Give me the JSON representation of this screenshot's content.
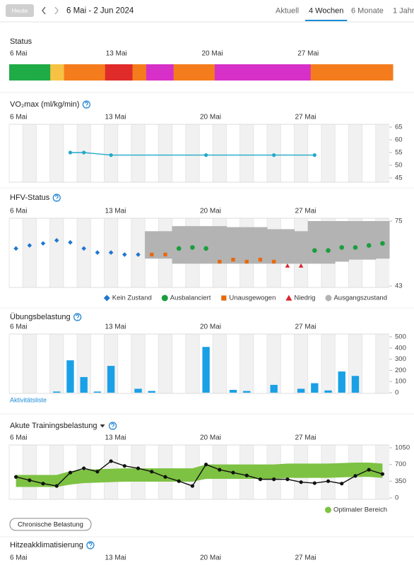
{
  "header": {
    "today": "Heute",
    "range": "6 Mai - 2 Jun 2024",
    "tabs": [
      {
        "label": "Aktuell"
      },
      {
        "label": "4 Wochen",
        "active": true
      },
      {
        "label": "6 Monate"
      },
      {
        "label": "1 Jahr"
      }
    ]
  },
  "chart_data": [
    {
      "type": "status",
      "title": "Status",
      "xlim": [
        -0.5,
        27.5
      ],
      "xticks": [
        {
          "value": 0,
          "label": "6 Mai"
        },
        {
          "value": 7,
          "label": "13 Mai"
        },
        {
          "value": 14,
          "label": "20 Mai"
        },
        {
          "value": 21,
          "label": "27 Mai"
        }
      ],
      "days": [
        "#1fab46",
        "#1fab46",
        "#1fab46",
        "#f7c244",
        "#f47c1c",
        "#f47c1c",
        "#f47c1c",
        "#e02b2b",
        "#e02b2b",
        "#f47c1c",
        "#d630c8",
        "#d630c8",
        "#f47c1c",
        "#f47c1c",
        "#f47c1c",
        "#d630c8",
        "#d630c8",
        "#d630c8",
        "#d630c8",
        "#d630c8",
        "#d630c8",
        "#d630c8",
        "#f47c1c",
        "#f47c1c",
        "#f47c1c",
        "#f47c1c",
        "#f47c1c",
        "#f47c1c"
      ]
    },
    {
      "type": "line",
      "title": "VO₂max (ml/kg/min)",
      "xlim": [
        -0.5,
        27.5
      ],
      "xticks": [
        {
          "value": 0,
          "label": "6 Mai"
        },
        {
          "value": 7,
          "label": "13 Mai"
        },
        {
          "value": 14,
          "label": "20 Mai"
        },
        {
          "value": 21,
          "label": "27 Mai"
        }
      ],
      "ylim": [
        45,
        65
      ],
      "yticks": [
        65,
        60,
        55,
        50,
        45
      ],
      "series": [
        {
          "color": "#22a9c9",
          "x": [
            4,
            5,
            7,
            14,
            19,
            22
          ],
          "values": [
            55,
            55,
            54,
            54,
            54,
            54
          ]
        }
      ]
    },
    {
      "type": "scatter",
      "title": "HFV-Status",
      "xlim": [
        -0.5,
        27.5
      ],
      "xticks": [
        {
          "value": 0,
          "label": "6 Mai"
        },
        {
          "value": 7,
          "label": "13 Mai"
        },
        {
          "value": 14,
          "label": "20 Mai"
        },
        {
          "value": 21,
          "label": "27 Mai"
        }
      ],
      "ylim": [
        43,
        75
      ],
      "yticks": [
        75,
        43
      ],
      "legend": "bottom-right",
      "series": [
        {
          "name": "Kein Zustand",
          "color": "#1f77d0",
          "marker": "diamond",
          "x": [
            0,
            1,
            2,
            3,
            4,
            5,
            6,
            7,
            8,
            9
          ],
          "values": [
            61.5,
            63,
            64,
            65.5,
            64.5,
            61.5,
            59.5,
            59.5,
            58.5,
            58.5
          ]
        },
        {
          "name": "Ausbalanciert",
          "color": "#1a9e3e",
          "marker": "circle",
          "x": [
            12,
            13,
            14,
            22,
            23,
            24,
            25,
            26,
            27
          ],
          "values": [
            61.5,
            62,
            61.5,
            60.5,
            60.5,
            62,
            62,
            63,
            64
          ]
        },
        {
          "name": "Unausgewogen",
          "color": "#e8690d",
          "marker": "square",
          "x": [
            10,
            11,
            15,
            16,
            17,
            18,
            19
          ],
          "values": [
            58.5,
            58.5,
            55,
            56,
            55,
            56,
            55
          ]
        },
        {
          "name": "Niedrig",
          "color": "#d9272e",
          "marker": "triangle",
          "x": [
            20,
            21
          ],
          "values": [
            53,
            53
          ]
        }
      ],
      "band": {
        "name": "Ausgangszustand",
        "color": "#b3b3b3",
        "x": [
          10,
          11,
          12,
          13,
          14,
          15,
          16,
          17,
          18,
          19,
          20,
          21,
          22,
          23,
          24,
          25,
          26,
          27
        ],
        "upper": [
          70,
          70,
          72.5,
          72.5,
          72.5,
          72.5,
          72,
          72,
          72,
          71,
          71,
          70,
          75,
          75,
          75,
          75,
          75,
          75
        ],
        "lower": [
          56.5,
          56.5,
          54,
          54,
          54,
          54,
          54,
          54,
          54,
          54,
          54,
          54,
          54,
          54,
          55,
          56,
          56,
          56.5
        ]
      }
    },
    {
      "type": "bar",
      "title": "Übungsbelastung",
      "xlim": [
        -0.5,
        27.5
      ],
      "xticks": [
        {
          "value": 0,
          "label": "6 Mai"
        },
        {
          "value": 7,
          "label": "13 Mai"
        },
        {
          "value": 14,
          "label": "20 Mai"
        },
        {
          "value": 21,
          "label": "27 Mai"
        }
      ],
      "ylim": [
        0,
        500
      ],
      "yticks": [
        500,
        400,
        300,
        200,
        100,
        0
      ],
      "link": "Aktivitätsliste",
      "series": [
        {
          "color": "#1aa0e6",
          "x": [
            3,
            4,
            5,
            6,
            7,
            9,
            10,
            14,
            16,
            17,
            19,
            21,
            22,
            23,
            24,
            25
          ],
          "values": [
            10,
            290,
            140,
            10,
            240,
            35,
            15,
            410,
            25,
            15,
            70,
            35,
            85,
            20,
            190,
            150
          ]
        }
      ]
    },
    {
      "type": "line",
      "title": "Akute Trainingsbelastung",
      "xlim": [
        -0.5,
        27.5
      ],
      "xticks": [
        {
          "value": 0,
          "label": "6 Mai"
        },
        {
          "value": 7,
          "label": "13 Mai"
        },
        {
          "value": 14,
          "label": "20 Mai"
        },
        {
          "value": 21,
          "label": "27 Mai"
        }
      ],
      "ylim": [
        0,
        1050
      ],
      "yticks": [
        1050,
        700,
        350,
        0
      ],
      "legend": "bottom-right",
      "button": "Chronische Belastung",
      "series": [
        {
          "color": "#111111",
          "x": [
            0,
            1,
            2,
            3,
            4,
            5,
            6,
            7,
            8,
            9,
            10,
            11,
            12,
            13,
            14,
            15,
            16,
            17,
            18,
            19,
            20,
            21,
            22,
            23,
            24,
            25,
            26,
            27
          ],
          "values": [
            440,
            370,
            300,
            250,
            530,
            620,
            550,
            770,
            670,
            620,
            550,
            440,
            350,
            250,
            700,
            590,
            530,
            470,
            390,
            390,
            390,
            330,
            310,
            350,
            300,
            460,
            590,
            500
          ]
        }
      ],
      "band": {
        "name": "Optimaler Bereich",
        "color": "#7dc242",
        "x": [
          0,
          1,
          2,
          3,
          4,
          5,
          6,
          7,
          8,
          9,
          10,
          11,
          12,
          13,
          14,
          15,
          16,
          17,
          18,
          19,
          20,
          21,
          22,
          23,
          24,
          25,
          26,
          27
        ],
        "upper": [
          480,
          480,
          480,
          480,
          560,
          590,
          600,
          610,
          620,
          620,
          620,
          620,
          620,
          620,
          700,
          700,
          700,
          700,
          700,
          700,
          720,
          720,
          720,
          720,
          730,
          740,
          740,
          720
        ],
        "lower": [
          230,
          230,
          230,
          230,
          280,
          310,
          320,
          330,
          340,
          340,
          340,
          340,
          340,
          340,
          400,
          400,
          400,
          400,
          400,
          400,
          420,
          420,
          420,
          420,
          430,
          440,
          440,
          420
        ]
      }
    },
    {
      "type": "line",
      "title": "Hitzeakklimatisierung",
      "xlim": [
        -0.5,
        27.5
      ],
      "xticks": [
        {
          "value": 0,
          "label": "6 Mai"
        },
        {
          "value": 7,
          "label": "13 Mai"
        },
        {
          "value": 14,
          "label": "20 Mai"
        },
        {
          "value": 21,
          "label": "27 Mai"
        }
      ]
    }
  ]
}
